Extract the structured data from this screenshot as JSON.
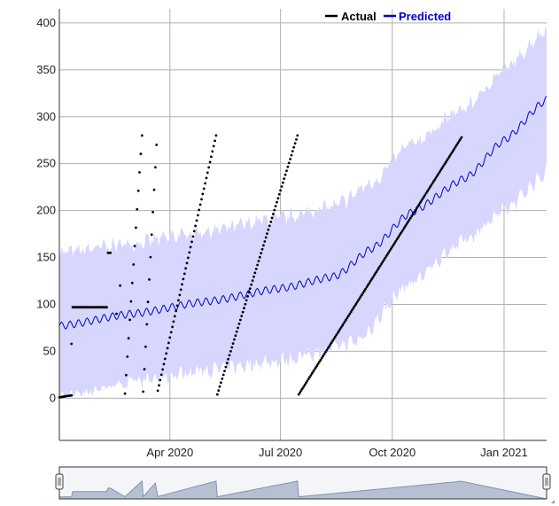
{
  "chart_data": {
    "type": "line",
    "title": "",
    "xlabel": "",
    "ylabel": "",
    "ylim": [
      -45,
      415
    ],
    "xlim": [
      "2020-01-01",
      "2021-02-05"
    ],
    "y_ticks": [
      0,
      50,
      100,
      150,
      200,
      250,
      300,
      350,
      400
    ],
    "x_ticks": [
      {
        "label": "Apr 2020",
        "date": "2020-04-01"
      },
      {
        "label": "Jul 2020",
        "date": "2020-07-01"
      },
      {
        "label": "Oct 2020",
        "date": "2020-10-01"
      },
      {
        "label": "Jan 2021",
        "date": "2021-01-01"
      }
    ],
    "grid": true,
    "legend": {
      "placement": "top-center"
    },
    "series": [
      {
        "name": "Actual",
        "color": "#000000",
        "style": "points",
        "segments": [
          {
            "start": "2020-01-01",
            "end": "2020-01-11",
            "y0": 1,
            "y1": 3
          },
          {
            "start": "2020-01-12",
            "end": "2020-02-09",
            "y0": 97,
            "y1": 97
          },
          {
            "start": "2020-02-10",
            "end": "2020-02-12",
            "y0": 155,
            "y1": 155
          },
          {
            "start": "2020-02-24",
            "end": "2020-03-09",
            "y0": 5,
            "y1": 280
          },
          {
            "start": "2020-03-10",
            "end": "2020-03-21",
            "y0": 7,
            "y1": 270
          },
          {
            "start": "2020-03-22",
            "end": "2020-05-09",
            "y0": 8,
            "y1": 280
          },
          {
            "start": "2020-05-10",
            "end": "2020-07-15",
            "y0": 4,
            "y1": 280
          },
          {
            "start": "2020-07-16",
            "end": "2020-11-27",
            "y0": 4,
            "y1": 278
          }
        ],
        "isolated_points": [
          {
            "x": "2020-01-11",
            "y": 58
          },
          {
            "x": "2020-02-17",
            "y": 90
          },
          {
            "x": "2020-02-20",
            "y": 120
          }
        ]
      },
      {
        "name": "Predicted",
        "color": "#0000cc",
        "band_color": "#d6d6ff",
        "start": "2020-01-01",
        "end": "2021-02-05",
        "knots": [
          {
            "x": "2020-01-01",
            "y": 77
          },
          {
            "x": "2020-03-01",
            "y": 90
          },
          {
            "x": "2020-05-01",
            "y": 103
          },
          {
            "x": "2020-07-01",
            "y": 117
          },
          {
            "x": "2020-08-15",
            "y": 130
          },
          {
            "x": "2020-09-15",
            "y": 160
          },
          {
            "x": "2020-10-15",
            "y": 197
          },
          {
            "x": "2020-12-01",
            "y": 235
          },
          {
            "x": "2021-01-01",
            "y": 275
          },
          {
            "x": "2021-02-05",
            "y": 318
          }
        ],
        "band_lower": [
          {
            "x": "2020-01-01",
            "y": 2
          },
          {
            "x": "2020-03-01",
            "y": 17
          },
          {
            "x": "2020-05-01",
            "y": 30
          },
          {
            "x": "2020-07-01",
            "y": 40
          },
          {
            "x": "2020-09-01",
            "y": 60
          },
          {
            "x": "2020-10-15",
            "y": 122
          },
          {
            "x": "2020-12-01",
            "y": 170
          },
          {
            "x": "2021-01-01",
            "y": 200
          },
          {
            "x": "2021-02-05",
            "y": 240
          }
        ],
        "band_upper": [
          {
            "x": "2020-01-01",
            "y": 155
          },
          {
            "x": "2020-03-01",
            "y": 165
          },
          {
            "x": "2020-05-01",
            "y": 178
          },
          {
            "x": "2020-07-01",
            "y": 192
          },
          {
            "x": "2020-08-15",
            "y": 205
          },
          {
            "x": "2020-09-15",
            "y": 230
          },
          {
            "x": "2020-10-15",
            "y": 270
          },
          {
            "x": "2020-12-01",
            "y": 310
          },
          {
            "x": "2021-01-01",
            "y": 350
          },
          {
            "x": "2021-02-05",
            "y": 393
          }
        ],
        "weekly_amplitude": 4,
        "band_noise": 6
      }
    ],
    "range_selector": {
      "start": "2020-01-01",
      "end": "2021-02-05"
    }
  }
}
